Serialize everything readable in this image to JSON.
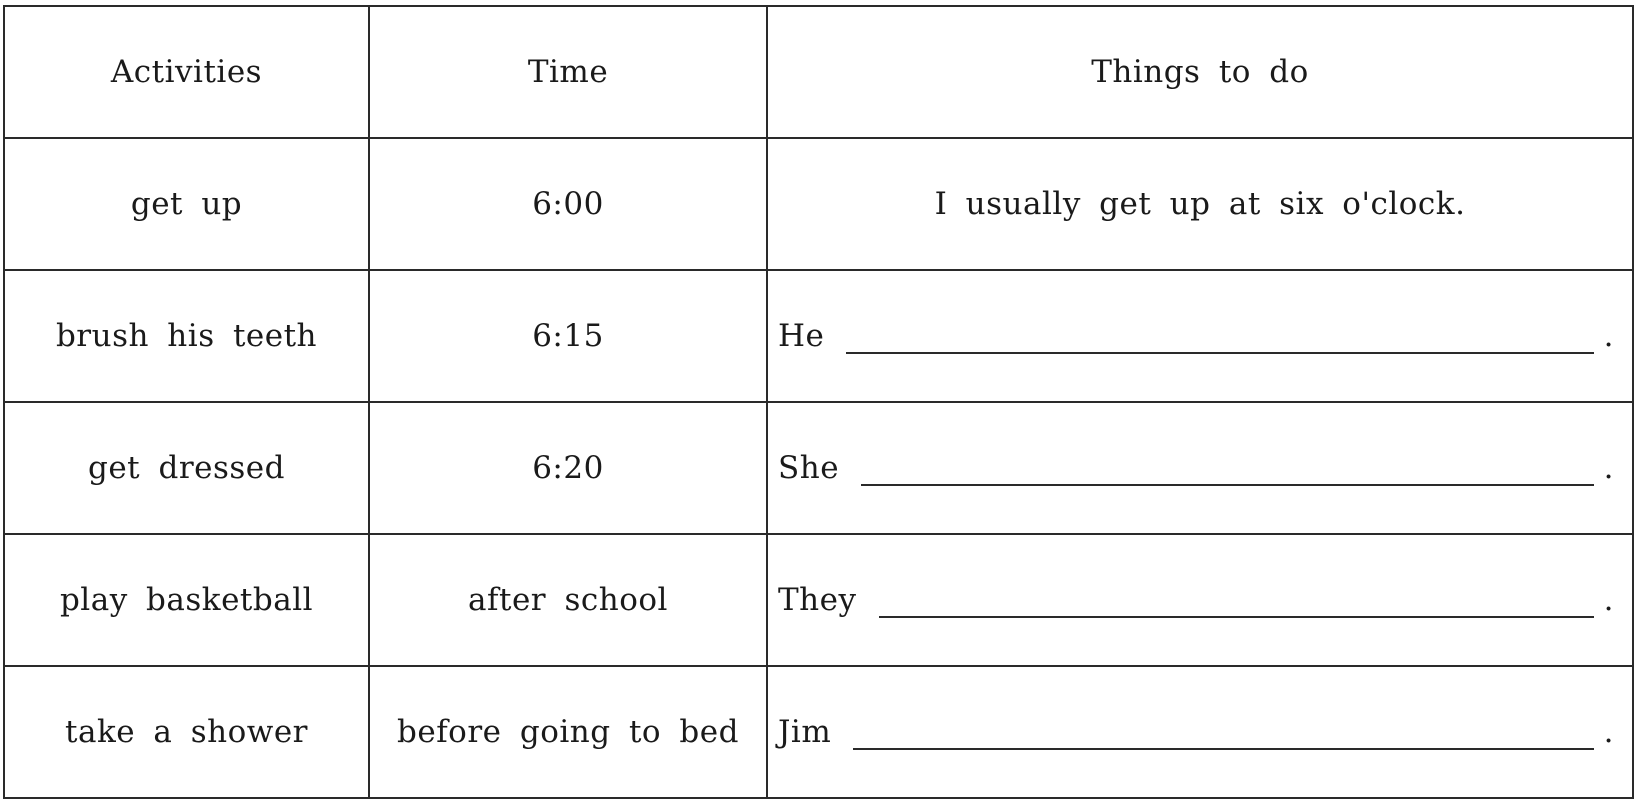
{
  "table": {
    "headers": [
      "Activities",
      "Time",
      "Things to do"
    ],
    "rows": [
      {
        "activity": "get up",
        "time": "6:00",
        "example": "I usually get up at six o'clock."
      },
      {
        "activity": "brush his teeth",
        "time": "6:15",
        "subject": "He",
        "end": "."
      },
      {
        "activity": "get dressed",
        "time": "6:20",
        "subject": "She",
        "end": "."
      },
      {
        "activity": "play basketball",
        "time": "after school",
        "subject": "They",
        "end": "."
      },
      {
        "activity": "take a shower",
        "time": "before going to bed",
        "subject": "Jim",
        "end": "."
      }
    ]
  }
}
